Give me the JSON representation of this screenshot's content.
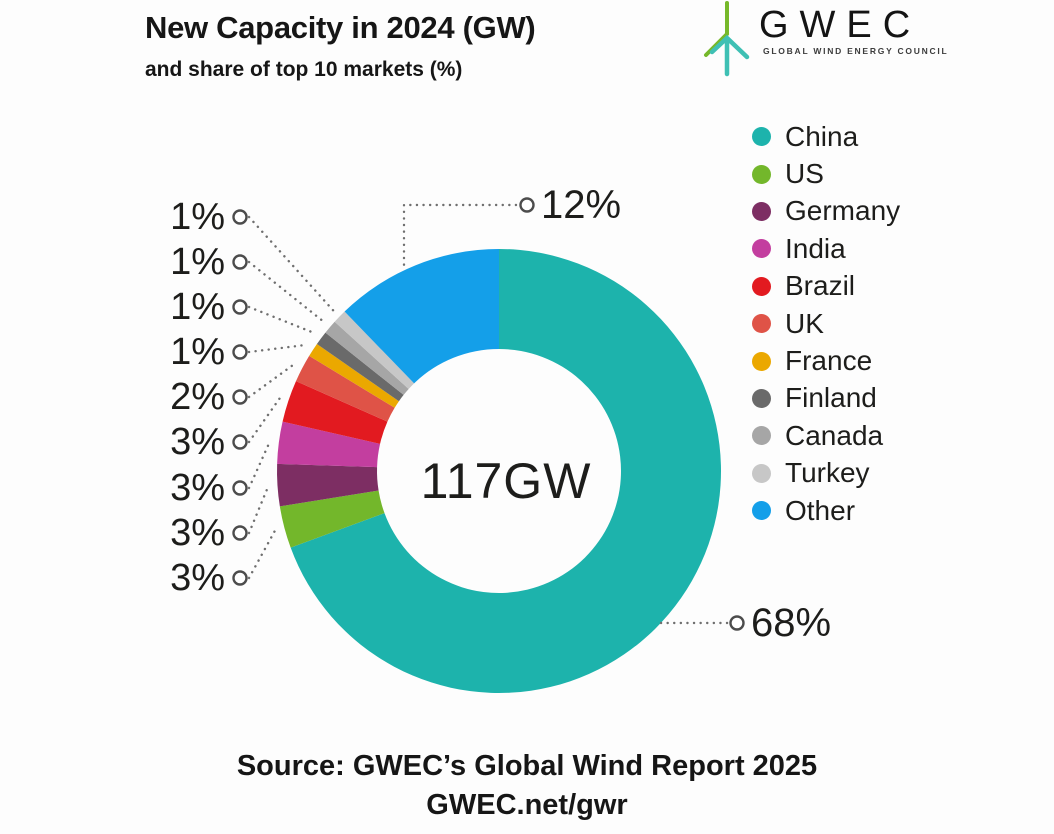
{
  "header": {
    "title": "New Capacity in 2024 (GW)",
    "subtitle": "and share of top 10 markets (%)"
  },
  "logo": {
    "text": "GWEC",
    "tagline": "GLOBAL WIND ENERGY COUNCIL",
    "turbine_green": "#76b82a",
    "turbine_teal": "#3fc0b4"
  },
  "footer": {
    "line1": "Source: GWEC’s Global Wind Report 2025",
    "line2": "GWEC.net/gwr"
  },
  "chart_data": {
    "type": "pie",
    "subtype": "donut",
    "title": "New Capacity in 2024 (GW)",
    "subtitle": "and share of top 10 markets (%)",
    "center_label": "117GW",
    "legend_position": "right",
    "categories": [
      "China",
      "US",
      "Germany",
      "India",
      "Brazil",
      "UK",
      "France",
      "Finland",
      "Canada",
      "Turkey",
      "Other"
    ],
    "values_pct": [
      68,
      3,
      3,
      3,
      3,
      2,
      1,
      1,
      1,
      1,
      12
    ],
    "labels": [
      "68%",
      "3%",
      "3%",
      "3%",
      "3%",
      "2%",
      "1%",
      "1%",
      "1%",
      "1%",
      "12%"
    ],
    "colors": [
      "#1db3ac",
      "#73b72b",
      "#7d2e63",
      "#c33e9f",
      "#e21a20",
      "#df5347",
      "#eba800",
      "#6a6a6a",
      "#a6a6a6",
      "#c7c7c7",
      "#149fe9"
    ],
    "label_color": "#1d1d1b",
    "leader_line_color": "#6f6f6f"
  }
}
